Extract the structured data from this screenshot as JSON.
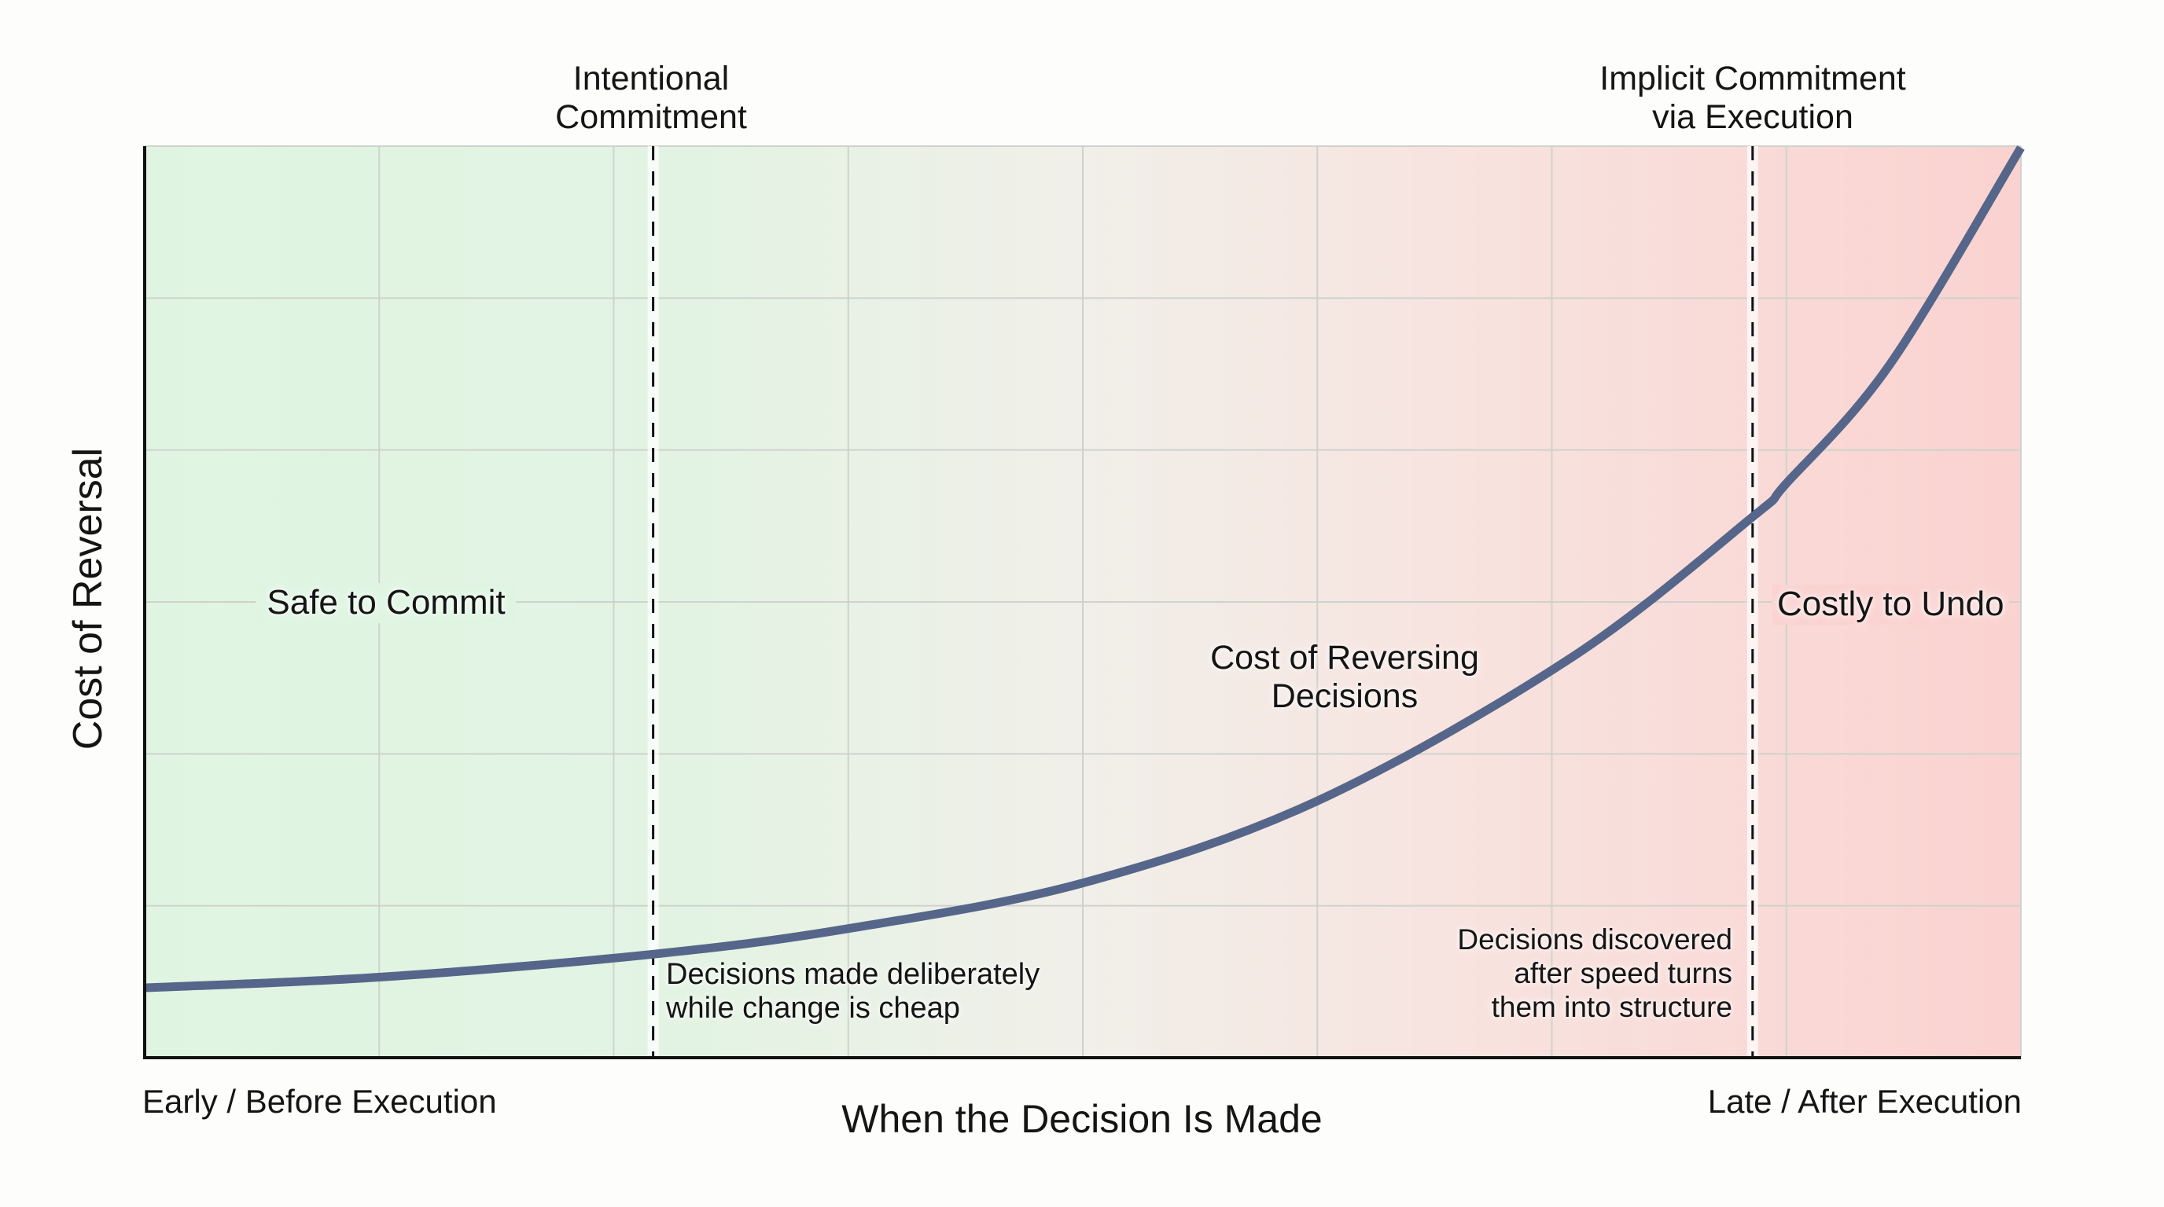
{
  "chart_data": {
    "type": "line",
    "title": "",
    "xlabel": "When the Decision Is Made",
    "ylabel": "Cost of Reversal",
    "x_tick_labels": {
      "start": "Early / Before Execution",
      "end": "Late / After Execution"
    },
    "xlim": [
      0,
      1
    ],
    "ylim": [
      0,
      6
    ],
    "grid": true,
    "grid_columns": 8,
    "grid_rows": 6,
    "legend": null,
    "background_gradient": {
      "start_color": "#dff5e2",
      "mid_color": "#f1efe9",
      "end_color": "#fad2d0"
    },
    "series": [
      {
        "name": "Cost of Reversing Decisions",
        "color": "#55668a",
        "x": [
          0.0,
          0.125,
          0.27,
          0.375,
          0.5,
          0.625,
          0.76,
          0.857,
          0.875,
          0.93,
          1.0
        ],
        "y": [
          0.46,
          0.53,
          0.68,
          0.85,
          1.15,
          1.69,
          2.63,
          3.56,
          3.78,
          4.56,
          5.99
        ]
      }
    ],
    "reference_lines": [
      {
        "x": 0.271,
        "style": "dashed",
        "label": [
          "Intentional",
          "Commitment"
        ]
      },
      {
        "x": 0.857,
        "style": "dashed",
        "label": [
          "Implicit Commitment",
          "via Execution"
        ]
      }
    ],
    "annotations": [
      {
        "text": "Safe to Commit",
        "x": 0.129,
        "y": 3.0
      },
      {
        "text": "Cost of Reversing Decisions",
        "lines": [
          "Cost of Reversing",
          "Decisions"
        ],
        "x": 0.64,
        "y": 2.55
      },
      {
        "text": "Costly to Undo",
        "x": 0.95,
        "y": 3.0
      },
      {
        "text": "Decisions made deliberately while change is cheap",
        "lines": [
          "Decisions made deliberately",
          "while change is cheap"
        ],
        "x": 0.28,
        "y": 0.4
      },
      {
        "text": "Decisions discovered after speed turns them into structure",
        "lines": [
          "Decisions discovered",
          "after speed turns",
          "them into structure"
        ],
        "x": 0.845,
        "y": 0.5
      }
    ]
  },
  "labels": {
    "ylabel": "Cost of Reversal",
    "xlabel": "When the Decision Is Made",
    "x_start": "Early / Before Execution",
    "x_end": "Late / After Execution",
    "intentional": [
      "Intentional",
      "Commitment"
    ],
    "implicit": [
      "Implicit Commitment",
      "via Execution"
    ],
    "safe": "Safe to Commit",
    "costly": "Costly to Undo",
    "curve_label": [
      "Cost of Reversing",
      "Decisions"
    ],
    "deliberate": [
      "Decisions made deliberately",
      "while change is cheap"
    ],
    "discovered": [
      "Decisions discovered",
      "after speed turns",
      "them into structure"
    ]
  }
}
